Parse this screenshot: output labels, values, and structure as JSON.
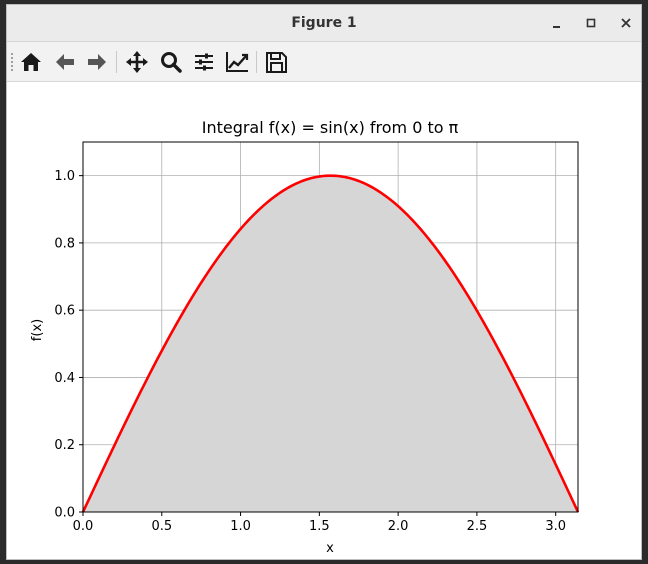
{
  "window": {
    "title": "Figure 1",
    "controls": [
      "minimize-icon",
      "maximize-icon",
      "close-icon"
    ]
  },
  "toolbar": {
    "buttons": [
      {
        "name": "home",
        "icon": "home-icon"
      },
      {
        "name": "back",
        "icon": "arrow-left-icon"
      },
      {
        "name": "forward",
        "icon": "arrow-right-icon"
      },
      {
        "name": "pan",
        "icon": "move-icon"
      },
      {
        "name": "zoom",
        "icon": "magnifier-icon"
      },
      {
        "name": "configure-subplots",
        "icon": "sliders-icon"
      },
      {
        "name": "edit-axis",
        "icon": "line-chart-icon"
      },
      {
        "name": "save",
        "icon": "floppy-disk-icon"
      }
    ]
  },
  "chart_data": {
    "type": "area",
    "title": "Integral f(x) = sin(x) from 0 to π",
    "xlabel": "x",
    "ylabel": "f(x)",
    "xlim": [
      0,
      3.14159
    ],
    "ylim": [
      0,
      1.1
    ],
    "xticks": [
      "0.0",
      "0.5",
      "1.0",
      "1.5",
      "2.0",
      "2.5",
      "3.0"
    ],
    "yticks": [
      "0.0",
      "0.2",
      "0.4",
      "0.6",
      "0.8",
      "1.0"
    ],
    "grid": true,
    "series": [
      {
        "function": "sin(x)",
        "x": [
          0,
          0.1963,
          0.3927,
          0.589,
          0.7854,
          0.9817,
          1.1781,
          1.3744,
          1.5708,
          1.7671,
          1.9635,
          2.1598,
          2.3562,
          2.5525,
          2.7489,
          2.9452,
          3.1416
        ],
        "y": [
          0,
          0.1951,
          0.3827,
          0.5556,
          0.7071,
          0.8315,
          0.9239,
          0.9808,
          1.0,
          0.9808,
          0.9239,
          0.8315,
          0.7071,
          0.5556,
          0.3827,
          0.1951,
          0
        ],
        "color": "#ff0000",
        "fill_color": "#d6d6d6"
      }
    ],
    "vlines": [
      {
        "x": 3.14159,
        "style": "dashed",
        "color": "#000000"
      }
    ]
  }
}
